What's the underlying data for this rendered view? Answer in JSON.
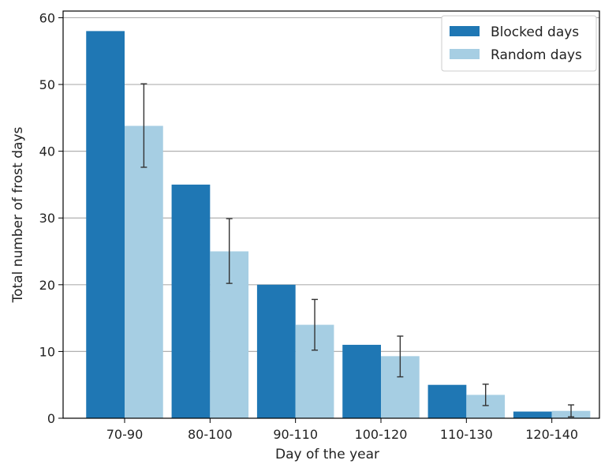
{
  "chart_data": {
    "type": "bar",
    "title": "",
    "xlabel": "Day of the year",
    "ylabel": "Total number of frost days",
    "categories": [
      "70-90",
      "80-100",
      "90-110",
      "100-120",
      "110-130",
      "120-140"
    ],
    "series": [
      {
        "name": "Blocked days",
        "color": "#1f77b4",
        "values": [
          58,
          35,
          20,
          11,
          5,
          1
        ]
      },
      {
        "name": "Random days",
        "color": "#a6cee3",
        "values": [
          43.8,
          25,
          14,
          9.3,
          3.5,
          1.1
        ],
        "error": [
          [
            37.6,
            50.1
          ],
          [
            20.2,
            29.9
          ],
          [
            10.2,
            17.8
          ],
          [
            6.2,
            12.3
          ],
          [
            1.9,
            5.1
          ],
          [
            0.2,
            2.0
          ]
        ]
      }
    ],
    "ylim": [
      0,
      61
    ],
    "yticks": [
      0,
      10,
      20,
      30,
      40,
      50,
      60
    ],
    "grid": "y",
    "legend_position": "top-right"
  }
}
